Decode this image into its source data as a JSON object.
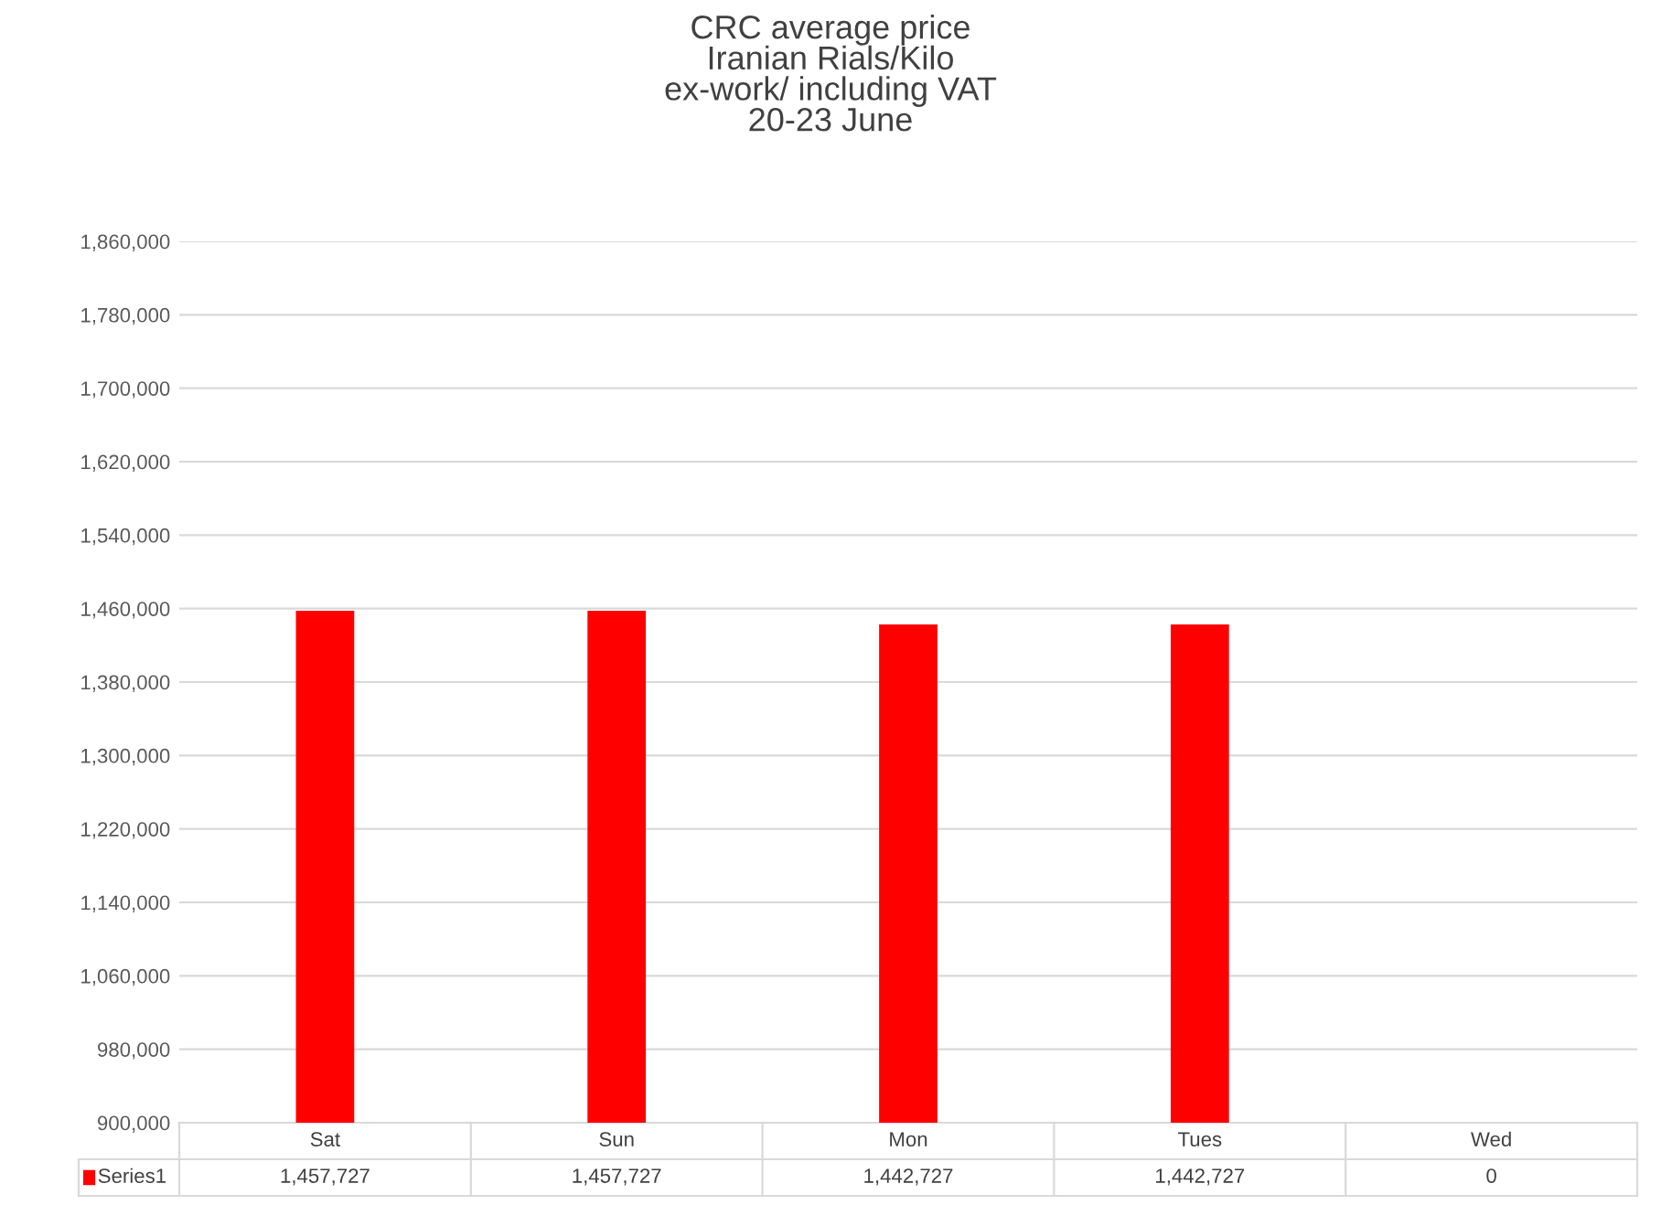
{
  "chart_data": {
    "type": "bar",
    "title": "CRC average price\nIranian Rials/Kilo\nex-work/ including VAT\n20-23 June",
    "categories": [
      "Sat",
      "Sun",
      "Mon",
      "Tues",
      "Wed"
    ],
    "series": [
      {
        "name": "Series1",
        "color": "#ff0000",
        "values": [
          1457727,
          1457727,
          1442727,
          1442727,
          null
        ],
        "value_labels": [
          "1,457,727",
          "1,457,727",
          "1,442,727",
          "1,442,727",
          "0"
        ]
      }
    ],
    "ylim": [
      900000,
      1860000
    ],
    "yticks": [
      {
        "value": 900000,
        "label": "900,000"
      },
      {
        "value": 980000,
        "label": "980,000"
      },
      {
        "value": 1060000,
        "label": "1,060,000"
      },
      {
        "value": 1140000,
        "label": "1,140,000"
      },
      {
        "value": 1220000,
        "label": "1,220,000"
      },
      {
        "value": 1300000,
        "label": "1,300,000"
      },
      {
        "value": 1380000,
        "label": "1,380,000"
      },
      {
        "value": 1460000,
        "label": "1,460,000"
      },
      {
        "value": 1540000,
        "label": "1,540,000"
      },
      {
        "value": 1620000,
        "label": "1,620,000"
      },
      {
        "value": 1700000,
        "label": "1,700,000"
      },
      {
        "value": 1780000,
        "label": "1,780,000"
      },
      {
        "value": 1860000,
        "label": "1,860,000"
      }
    ],
    "grid": "y"
  }
}
